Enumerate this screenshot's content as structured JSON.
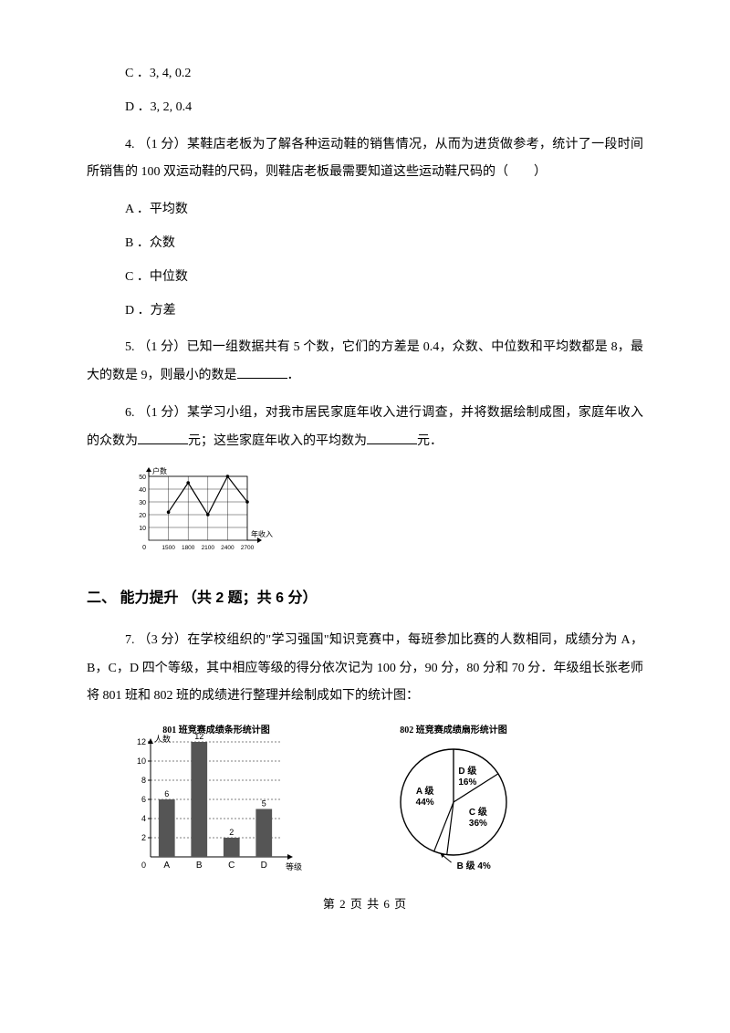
{
  "q3": {
    "optC": "C ．3, 4, 0.2",
    "optD": "D ．3, 2, 0.4"
  },
  "q4": {
    "stem": "4.   （1 分）某鞋店老板为了解各种运动鞋的销售情况，从而为进货做参考，统计了一段时间所销售的 100 双运动鞋的尺码，则鞋店老板最需要知道这些运动鞋尺码的（　　）",
    "optA": "A ．平均数",
    "optB": "B ．众数",
    "optC": "C ．中位数",
    "optD": "D ．方差"
  },
  "q5": {
    "part1": "5.   （1 分）已知一组数据共有 5 个数，它们的方差是 0.4，众数、中位数和平均数都是 8，最大的数是 9，则最小的数是",
    "part2": "．"
  },
  "q6": {
    "part1": "6.   （1 分）某学习小组，对我市居民家庭年收入进行调查，并将数据绘制成图，家庭年收入的众数为",
    "part2": "元；这些家庭年收入的平均数为",
    "part3": "元．",
    "chart": {
      "yLabel": "户数",
      "xLabel": "年收入",
      "xTicks": [
        "0",
        "1500",
        "1800",
        "2100",
        "2400",
        "2700"
      ],
      "yTicks": [
        "10",
        "20",
        "30",
        "40",
        "50"
      ],
      "points": [
        {
          "x": 1,
          "y": 22
        },
        {
          "x": 2,
          "y": 45
        },
        {
          "x": 3,
          "y": 20
        },
        {
          "x": 4,
          "y": 50
        },
        {
          "x": 5,
          "y": 30
        }
      ],
      "width": 170,
      "height": 100
    }
  },
  "section2": "二、 能力提升 （共 2 题；共 6 分）",
  "q7": {
    "stem": "7.   （3 分）在学校组织的\"学习强国\"知识竞赛中，每班参加比赛的人数相同，成绩分为 A，B，C，D 四个等级，其中相应等级的得分依次记为 100 分，90 分，80 分和 70 分．年级组长张老师将 801 班和 802 班的成绩进行整理并绘制成如下的统计图：",
    "barChart": {
      "title": "801 班竞赛成绩条形统计图",
      "yLabel": "人数",
      "xLabel": "等级",
      "categories": [
        "A",
        "B",
        "C",
        "D"
      ],
      "values": [
        6,
        12,
        2,
        5
      ],
      "yMax": 12,
      "yTicks": [
        2,
        4,
        6,
        8,
        10,
        12
      ],
      "barColor": "#555555"
    },
    "pieChart": {
      "title": "802 班竞赛成绩扇形统计图",
      "slices": [
        {
          "label": "A 级",
          "pct": "44%",
          "value": 44
        },
        {
          "label": "D 级",
          "pct": "16%",
          "value": 16
        },
        {
          "label": "C 级",
          "pct": "36%",
          "value": 36
        },
        {
          "label": "B 级",
          "pct": "4%",
          "value": 4
        }
      ]
    }
  },
  "footer": "第  2  页  共  6  页"
}
